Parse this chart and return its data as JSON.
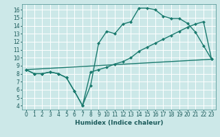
{
  "xlabel": "Humidex (Indice chaleur)",
  "bg_color": "#cce8e8",
  "grid_color": "#ffffff",
  "line_color": "#1a7a6e",
  "xlim": [
    -0.5,
    23.5
  ],
  "ylim": [
    3.5,
    16.7
  ],
  "xticks": [
    0,
    1,
    2,
    3,
    4,
    5,
    6,
    7,
    8,
    9,
    10,
    11,
    12,
    13,
    14,
    15,
    16,
    17,
    18,
    19,
    20,
    21,
    22,
    23
  ],
  "yticks": [
    4,
    5,
    6,
    7,
    8,
    9,
    10,
    11,
    12,
    13,
    14,
    15,
    16
  ],
  "line1_x": [
    0,
    1,
    2,
    3,
    4,
    5,
    6,
    7,
    8,
    9,
    10,
    11,
    12,
    13,
    14,
    15,
    16,
    17,
    18,
    19,
    20,
    21,
    22,
    23
  ],
  "line1_y": [
    8.5,
    8.0,
    8.0,
    8.2,
    8.0,
    7.5,
    5.8,
    4.0,
    6.5,
    11.8,
    13.3,
    13.0,
    14.2,
    14.5,
    16.2,
    16.2,
    16.0,
    15.2,
    14.9,
    14.9,
    14.3,
    13.2,
    11.5,
    9.8
  ],
  "line2_x": [
    0,
    1,
    2,
    3,
    4,
    5,
    6,
    7,
    8,
    9,
    10,
    11,
    12,
    13,
    14,
    15,
    16,
    17,
    18,
    19,
    20,
    21,
    22,
    23
  ],
  "line2_y": [
    8.5,
    8.0,
    8.0,
    8.2,
    8.0,
    7.5,
    5.8,
    4.0,
    8.2,
    8.5,
    8.8,
    9.2,
    9.5,
    10.0,
    10.8,
    11.3,
    11.8,
    12.3,
    12.8,
    13.3,
    13.8,
    14.2,
    14.5,
    9.8
  ],
  "line3_x": [
    0,
    23
  ],
  "line3_y": [
    8.5,
    9.8
  ],
  "marker": "D",
  "markersize": 2.5,
  "linewidth": 1.0
}
